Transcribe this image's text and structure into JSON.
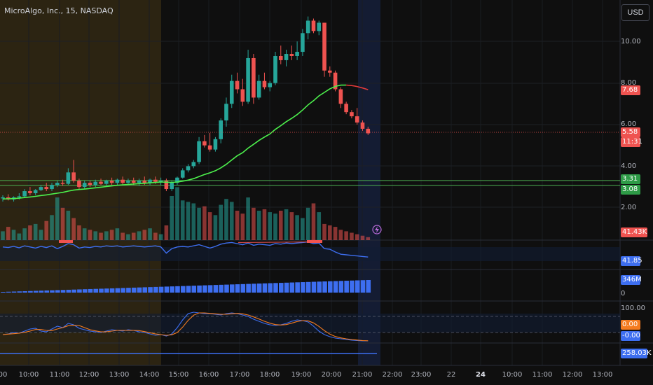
{
  "header": {
    "title": "MicroAlgo, Inc., 15, NASDAQ",
    "currency_button": "USD"
  },
  "price_axis": {
    "labels": [
      "10.00",
      "8.00",
      "6.00",
      "4.00",
      "2.00"
    ]
  },
  "tags": {
    "ma_value": "7.68",
    "last_price": "5.58",
    "countdown": "11:31",
    "level_upper": "3.31",
    "level_lower": "3.08",
    "volume": "41.43K",
    "rsi_value": "41.85",
    "obv_value": "346M",
    "obv_zero": "0",
    "stoch_top": "100.00",
    "stoch_k": "0.00",
    "stoch_d": "-0.00",
    "bottom_value": "258.03K"
  },
  "time_axis": {
    "labels": [
      "00",
      "10:00",
      "11:00",
      "12:00",
      "13:00",
      "14:00",
      "15:00",
      "16:00",
      "17:00",
      "18:00",
      "19:00",
      "20:00",
      "21:00",
      "22:00",
      "23:00",
      "22",
      "24",
      "10:00",
      "11:00",
      "12:00",
      "13:00"
    ],
    "bold_label": "24"
  },
  "colors": {
    "up": "#26a69a",
    "down": "#ef5350",
    "ma_green": "#4cf04c",
    "ma_red": "#e23a3a",
    "indicator_blue": "#3d6ef0",
    "stoch_orange": "#f57c20",
    "session_premarket": "#2c2412",
    "session_afterhours": "#141c33",
    "level_line": "#4caf50"
  },
  "chart_data": {
    "type": "candlestick",
    "interval": "15",
    "candles": [
      {
        "o": 2.45,
        "h": 2.6,
        "l": 2.3,
        "c": 2.5
      },
      {
        "o": 2.5,
        "h": 2.65,
        "l": 2.35,
        "c": 2.4
      },
      {
        "o": 2.4,
        "h": 2.55,
        "l": 2.3,
        "c": 2.5
      },
      {
        "o": 2.5,
        "h": 2.7,
        "l": 2.4,
        "c": 2.55
      },
      {
        "o": 2.55,
        "h": 2.9,
        "l": 2.5,
        "c": 2.8
      },
      {
        "o": 2.8,
        "h": 3.0,
        "l": 2.6,
        "c": 2.7
      },
      {
        "o": 2.7,
        "h": 2.9,
        "l": 2.6,
        "c": 2.85
      },
      {
        "o": 2.85,
        "h": 3.1,
        "l": 2.8,
        "c": 3.0
      },
      {
        "o": 3.0,
        "h": 3.2,
        "l": 2.8,
        "c": 2.9
      },
      {
        "o": 2.9,
        "h": 3.2,
        "l": 2.8,
        "c": 3.1
      },
      {
        "o": 3.1,
        "h": 3.3,
        "l": 3.0,
        "c": 3.2
      },
      {
        "o": 3.2,
        "h": 3.35,
        "l": 3.05,
        "c": 3.15
      },
      {
        "o": 3.15,
        "h": 3.9,
        "l": 3.1,
        "c": 3.7
      },
      {
        "o": 3.7,
        "h": 4.3,
        "l": 3.2,
        "c": 3.3
      },
      {
        "o": 3.3,
        "h": 3.4,
        "l": 2.9,
        "c": 3.0
      },
      {
        "o": 3.0,
        "h": 3.3,
        "l": 2.9,
        "c": 3.2
      },
      {
        "o": 3.2,
        "h": 3.3,
        "l": 3.0,
        "c": 3.1
      },
      {
        "o": 3.1,
        "h": 3.35,
        "l": 3.0,
        "c": 3.25
      },
      {
        "o": 3.25,
        "h": 3.4,
        "l": 3.1,
        "c": 3.15
      },
      {
        "o": 3.15,
        "h": 3.35,
        "l": 3.05,
        "c": 3.3
      },
      {
        "o": 3.3,
        "h": 3.45,
        "l": 3.1,
        "c": 3.2
      },
      {
        "o": 3.2,
        "h": 3.4,
        "l": 3.1,
        "c": 3.35
      },
      {
        "o": 3.35,
        "h": 3.5,
        "l": 3.1,
        "c": 3.2
      },
      {
        "o": 3.2,
        "h": 3.4,
        "l": 3.1,
        "c": 3.3
      },
      {
        "o": 3.3,
        "h": 3.45,
        "l": 3.1,
        "c": 3.2
      },
      {
        "o": 3.2,
        "h": 3.4,
        "l": 3.05,
        "c": 3.3
      },
      {
        "o": 3.3,
        "h": 3.5,
        "l": 3.1,
        "c": 3.2
      },
      {
        "o": 3.2,
        "h": 3.4,
        "l": 3.1,
        "c": 3.35
      },
      {
        "o": 3.35,
        "h": 3.5,
        "l": 3.15,
        "c": 3.25
      },
      {
        "o": 3.25,
        "h": 3.45,
        "l": 3.1,
        "c": 3.3
      },
      {
        "o": 3.3,
        "h": 3.4,
        "l": 2.8,
        "c": 2.9
      },
      {
        "o": 2.9,
        "h": 3.3,
        "l": 2.8,
        "c": 3.2
      },
      {
        "o": 3.2,
        "h": 3.5,
        "l": 3.1,
        "c": 3.45
      },
      {
        "o": 3.45,
        "h": 3.9,
        "l": 3.4,
        "c": 3.8
      },
      {
        "o": 3.8,
        "h": 4.1,
        "l": 3.7,
        "c": 4.0
      },
      {
        "o": 4.0,
        "h": 4.3,
        "l": 3.9,
        "c": 4.2
      },
      {
        "o": 4.2,
        "h": 5.4,
        "l": 4.1,
        "c": 5.2
      },
      {
        "o": 5.2,
        "h": 5.5,
        "l": 4.9,
        "c": 5.0
      },
      {
        "o": 5.0,
        "h": 5.6,
        "l": 4.7,
        "c": 4.8
      },
      {
        "o": 4.8,
        "h": 5.4,
        "l": 4.7,
        "c": 5.3
      },
      {
        "o": 5.3,
        "h": 6.3,
        "l": 5.1,
        "c": 6.2
      },
      {
        "o": 6.2,
        "h": 7.3,
        "l": 5.9,
        "c": 7.0
      },
      {
        "o": 7.0,
        "h": 8.4,
        "l": 6.8,
        "c": 8.1
      },
      {
        "o": 8.1,
        "h": 8.5,
        "l": 7.5,
        "c": 7.7
      },
      {
        "o": 7.7,
        "h": 8.2,
        "l": 6.9,
        "c": 7.1
      },
      {
        "o": 7.1,
        "h": 9.6,
        "l": 7.0,
        "c": 9.2
      },
      {
        "o": 9.2,
        "h": 9.4,
        "l": 7.0,
        "c": 7.3
      },
      {
        "o": 7.3,
        "h": 8.4,
        "l": 7.2,
        "c": 8.1
      },
      {
        "o": 8.1,
        "h": 8.5,
        "l": 7.7,
        "c": 7.8
      },
      {
        "o": 7.8,
        "h": 8.1,
        "l": 7.6,
        "c": 8.0
      },
      {
        "o": 8.0,
        "h": 9.5,
        "l": 7.9,
        "c": 9.3
      },
      {
        "o": 9.3,
        "h": 9.8,
        "l": 8.9,
        "c": 9.1
      },
      {
        "o": 9.1,
        "h": 9.6,
        "l": 8.8,
        "c": 9.4
      },
      {
        "o": 9.4,
        "h": 9.8,
        "l": 9.1,
        "c": 9.3
      },
      {
        "o": 9.3,
        "h": 10.0,
        "l": 9.1,
        "c": 9.5
      },
      {
        "o": 9.5,
        "h": 10.6,
        "l": 9.3,
        "c": 10.4
      },
      {
        "o": 10.4,
        "h": 11.2,
        "l": 10.1,
        "c": 11.0
      },
      {
        "o": 11.0,
        "h": 11.1,
        "l": 10.4,
        "c": 10.5
      },
      {
        "o": 10.5,
        "h": 11.0,
        "l": 10.3,
        "c": 10.9
      },
      {
        "o": 10.9,
        "h": 10.9,
        "l": 8.3,
        "c": 8.6
      },
      {
        "o": 8.6,
        "h": 8.8,
        "l": 8.3,
        "c": 8.5
      },
      {
        "o": 8.5,
        "h": 8.6,
        "l": 7.6,
        "c": 7.7
      },
      {
        "o": 7.7,
        "h": 7.8,
        "l": 6.8,
        "c": 7.0
      },
      {
        "o": 7.0,
        "h": 7.1,
        "l": 6.5,
        "c": 6.6
      },
      {
        "o": 6.6,
        "h": 6.7,
        "l": 6.3,
        "c": 6.4
      },
      {
        "o": 6.4,
        "h": 6.8,
        "l": 6.0,
        "c": 6.1
      },
      {
        "o": 6.1,
        "h": 6.2,
        "l": 5.7,
        "c": 5.8
      },
      {
        "o": 5.8,
        "h": 5.9,
        "l": 5.5,
        "c": 5.58
      }
    ],
    "moving_average": [
      2.42,
      2.43,
      2.44,
      2.46,
      2.49,
      2.52,
      2.55,
      2.59,
      2.62,
      2.66,
      2.7,
      2.74,
      2.8,
      2.85,
      2.88,
      2.9,
      2.93,
      2.96,
      2.99,
      3.02,
      3.05,
      3.08,
      3.1,
      3.12,
      3.14,
      3.16,
      3.18,
      3.2,
      3.22,
      3.24,
      3.23,
      3.22,
      3.24,
      3.28,
      3.33,
      3.4,
      3.5,
      3.6,
      3.68,
      3.78,
      3.92,
      4.09,
      4.3,
      4.5,
      4.65,
      4.87,
      5.05,
      5.24,
      5.4,
      5.55,
      5.77,
      5.95,
      6.14,
      6.3,
      6.48,
      6.7,
      6.95,
      7.15,
      7.38,
      7.55,
      7.72,
      7.84,
      7.9,
      7.9,
      7.88,
      7.83,
      7.76,
      7.68
    ],
    "price_levels": [
      3.31,
      3.08
    ],
    "volume_max": 41430
  }
}
